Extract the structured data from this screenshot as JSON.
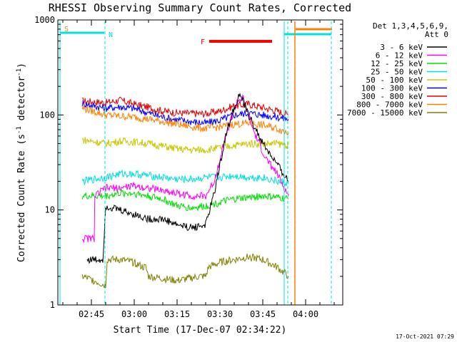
{
  "chart_data": {
    "type": "line",
    "title": "RHESSI Observing Summary Count Rates, Corrected",
    "xlabel": "Start Time (17-Dec-07 02:34:22)",
    "ylabel_main": "Corrected Count Rate (s",
    "ylabel_sup1": "-1",
    "ylabel_mid": " detector",
    "ylabel_sup2": "-1",
    "ylabel_end": ")",
    "timestamp": "17-Oct-2021 07:29",
    "y_scale": "log",
    "ylim": [
      1,
      1000
    ],
    "xlim_minutes": [
      -5,
      60
    ],
    "x_ticks": [
      {
        "label": "02:45",
        "minutes": 0
      },
      {
        "label": "03:00",
        "minutes": 15
      },
      {
        "label": "03:15",
        "minutes": 30
      },
      {
        "label": "03:30",
        "minutes": 45
      },
      {
        "label": "03:45",
        "minutes": 60
      },
      {
        "label": "04:00",
        "minutes": 75
      }
    ],
    "y_ticks": [
      {
        "label": "1",
        "value": 1
      },
      {
        "label": "10",
        "value": 10
      },
      {
        "label": "100",
        "value": 100
      },
      {
        "label": "1000",
        "value": 1000
      }
    ],
    "legend": {
      "placement": "right-top",
      "header1": "Det 1,3,4,5,6,9,",
      "header2": "Att 0",
      "entries": [
        {
          "label": "3 - 6 keV",
          "color": "#000000"
        },
        {
          "label": "6 - 12 keV",
          "color": "#ff00ff"
        },
        {
          "label": "12 - 25 keV",
          "color": "#00e000"
        },
        {
          "label": "25 - 50 keV",
          "color": "#00e0e0"
        },
        {
          "label": "50 - 100 keV",
          "color": "#c8c800"
        },
        {
          "label": "100 - 300 keV",
          "color": "#0000ff"
        },
        {
          "label": "300 - 800 keV",
          "color": "#e00000"
        },
        {
          "label": "800 - 7000 keV",
          "color": "#ff8000"
        },
        {
          "label": "7000 - 15000 keV",
          "color": "#808000"
        }
      ]
    },
    "annotations": {
      "saa_label": "S",
      "night_label": "N",
      "flare_label": "F"
    },
    "series": [
      {
        "color": "#e00000",
        "points": [
          [
            -3.2,
            140
          ],
          [
            5,
            135
          ],
          [
            10,
            143
          ],
          [
            15,
            130
          ],
          [
            20,
            120
          ],
          [
            25,
            110
          ],
          [
            30,
            105
          ],
          [
            35,
            104
          ],
          [
            40,
            103
          ],
          [
            45,
            110
          ],
          [
            50,
            125
          ],
          [
            55,
            130
          ],
          [
            60,
            120
          ],
          [
            65,
            110
          ],
          [
            69,
            100
          ]
        ]
      },
      {
        "color": "#0000ff",
        "points": [
          [
            -3.2,
            132
          ],
          [
            5,
            118
          ],
          [
            10,
            122
          ],
          [
            15,
            117
          ],
          [
            20,
            105
          ],
          [
            25,
            95
          ],
          [
            30,
            89
          ],
          [
            35,
            85
          ],
          [
            40,
            82
          ],
          [
            45,
            88
          ],
          [
            50,
            100
          ],
          [
            55,
            105
          ],
          [
            60,
            100
          ],
          [
            65,
            95
          ],
          [
            69,
            90
          ]
        ]
      },
      {
        "color": "#ff8000",
        "points": [
          [
            -3.2,
            118
          ],
          [
            5,
            100
          ],
          [
            10,
            97
          ],
          [
            15,
            95
          ],
          [
            20,
            90
          ],
          [
            25,
            85
          ],
          [
            30,
            80
          ],
          [
            35,
            75
          ],
          [
            40,
            72
          ],
          [
            45,
            75
          ],
          [
            50,
            80
          ],
          [
            55,
            82
          ],
          [
            60,
            78
          ],
          [
            65,
            72
          ],
          [
            69,
            65
          ]
        ]
      },
      {
        "color": "#c8c800",
        "points": [
          [
            -3.2,
            55
          ],
          [
            5,
            50
          ],
          [
            10,
            53
          ],
          [
            15,
            52
          ],
          [
            20,
            50
          ],
          [
            25,
            47
          ],
          [
            30,
            44
          ],
          [
            35,
            43
          ],
          [
            40,
            43
          ],
          [
            45,
            45
          ],
          [
            50,
            48
          ],
          [
            55,
            50
          ],
          [
            60,
            50
          ],
          [
            65,
            50
          ],
          [
            69,
            48
          ]
        ]
      },
      {
        "color": "#00e0e0",
        "points": [
          [
            -3.2,
            20
          ],
          [
            5,
            22
          ],
          [
            10,
            24
          ],
          [
            15,
            24
          ],
          [
            20,
            23
          ],
          [
            25,
            22
          ],
          [
            30,
            21
          ],
          [
            35,
            21
          ],
          [
            40,
            22
          ],
          [
            45,
            22
          ],
          [
            50,
            23
          ],
          [
            55,
            22
          ],
          [
            60,
            22
          ],
          [
            65,
            20
          ],
          [
            69,
            19
          ]
        ]
      },
      {
        "color": "#00e000",
        "points": [
          [
            -3.2,
            14
          ],
          [
            5,
            14
          ],
          [
            10,
            15
          ],
          [
            15,
            15
          ],
          [
            20,
            14
          ],
          [
            25,
            13
          ],
          [
            30,
            11
          ],
          [
            35,
            10.5
          ],
          [
            40,
            11
          ],
          [
            45,
            12
          ],
          [
            50,
            13
          ],
          [
            55,
            13.5
          ],
          [
            60,
            14
          ],
          [
            65,
            13.5
          ],
          [
            69,
            13
          ]
        ]
      },
      {
        "color": "#ff00ff",
        "points": [
          [
            -3.2,
            5
          ],
          [
            1,
            5
          ],
          [
            1.2,
            14
          ],
          [
            5,
            17
          ],
          [
            10,
            17
          ],
          [
            15,
            18
          ],
          [
            20,
            17
          ],
          [
            25,
            16
          ],
          [
            30,
            15
          ],
          [
            35,
            14
          ],
          [
            40,
            14
          ],
          [
            43,
            20
          ],
          [
            47,
            60
          ],
          [
            51,
            140
          ],
          [
            53,
            150
          ],
          [
            57,
            65
          ],
          [
            61,
            35
          ],
          [
            65,
            24
          ],
          [
            69,
            14
          ]
        ]
      },
      {
        "color": "#000000",
        "points": [
          [
            -1.5,
            3
          ],
          [
            1,
            3
          ],
          [
            4,
            3
          ],
          [
            5,
            11
          ],
          [
            10,
            10
          ],
          [
            15,
            9
          ],
          [
            20,
            8
          ],
          [
            25,
            8
          ],
          [
            30,
            7
          ],
          [
            35,
            6.5
          ],
          [
            40,
            7
          ],
          [
            43,
            15
          ],
          [
            47,
            60
          ],
          [
            50,
            120
          ],
          [
            52,
            165
          ],
          [
            55,
            100
          ],
          [
            60,
            50
          ],
          [
            65,
            30
          ],
          [
            69,
            20
          ]
        ]
      },
      {
        "color": "#808000",
        "points": [
          [
            -3.2,
            2
          ],
          [
            1,
            1.8
          ],
          [
            5,
            1.6
          ],
          [
            5.5,
            3
          ],
          [
            10,
            3
          ],
          [
            15,
            2.8
          ],
          [
            18,
            2.5
          ],
          [
            19,
            2.5
          ],
          [
            20,
            2
          ],
          [
            30,
            1.8
          ],
          [
            38,
            2
          ],
          [
            40,
            2
          ],
          [
            41,
            2.5
          ],
          [
            45,
            2.8
          ],
          [
            50,
            3
          ],
          [
            55,
            3.2
          ],
          [
            60,
            3
          ],
          [
            65,
            2.5
          ],
          [
            69,
            2
          ]
        ]
      }
    ]
  }
}
